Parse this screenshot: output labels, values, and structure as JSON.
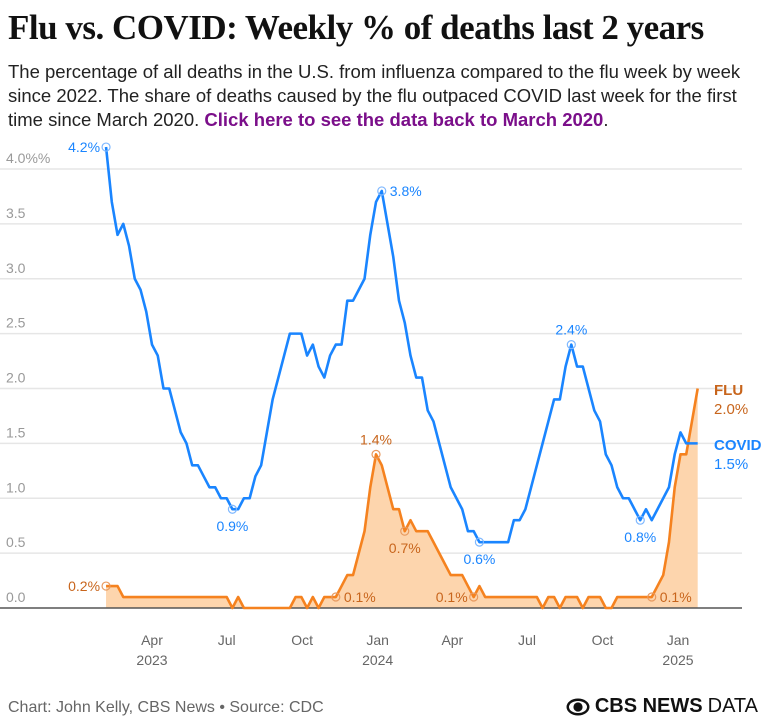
{
  "header": {
    "title": "Flu vs. COVID: Weekly % of deaths last 2 years",
    "subtitle": "The percentage of all deaths in the U.S. from influenza compared to the flu week by week since 2022. The share of deaths caused by the flu outpaced COVID last week for the first time since March 2020. ",
    "link": "Click here to see the data back to March 2020",
    "link_suffix": "."
  },
  "footer": {
    "credit": "Chart: John Kelly, CBS News • Source: CDC",
    "logo": "CBS NEWS",
    "logo_suffix": "DATA"
  },
  "colors": {
    "covid": "#1a85ff",
    "flu": "#f5821f",
    "flu_text": "#c8651c",
    "flu_fill": "#fdd5ad",
    "grid": "#e6e6e6"
  },
  "chart_data": {
    "type": "line",
    "title": "Flu vs. COVID: Weekly % of deaths last 2 years",
    "ylim": [
      0,
      4.2
    ],
    "grid": true,
    "y_ticks": [
      "0.0",
      "0.5",
      "1.0",
      "1.5",
      "2.0",
      "2.5",
      "3.0",
      "3.5",
      "4.0%%"
    ],
    "x_ticks": [
      {
        "label": "Apr",
        "year": "2023",
        "date": "2023-04-01"
      },
      {
        "label": "Jul",
        "year": "",
        "date": "2023-07-01"
      },
      {
        "label": "Oct",
        "year": "",
        "date": "2023-10-01"
      },
      {
        "label": "Jan",
        "year": "2024",
        "date": "2024-01-01"
      },
      {
        "label": "Apr",
        "year": "",
        "date": "2024-04-01"
      },
      {
        "label": "Jul",
        "year": "",
        "date": "2024-07-01"
      },
      {
        "label": "Oct",
        "year": "",
        "date": "2024-10-01"
      },
      {
        "label": "Jan",
        "year": "2025",
        "date": "2025-01-01"
      }
    ],
    "x": [
      "2023-02-04",
      "2023-02-11",
      "2023-02-18",
      "2023-02-25",
      "2023-03-04",
      "2023-03-11",
      "2023-03-18",
      "2023-03-25",
      "2023-04-01",
      "2023-04-08",
      "2023-04-15",
      "2023-04-22",
      "2023-04-29",
      "2023-05-06",
      "2023-05-13",
      "2023-05-20",
      "2023-05-27",
      "2023-06-03",
      "2023-06-10",
      "2023-06-17",
      "2023-06-24",
      "2023-07-01",
      "2023-07-08",
      "2023-07-15",
      "2023-07-22",
      "2023-07-29",
      "2023-08-05",
      "2023-08-12",
      "2023-08-19",
      "2023-08-26",
      "2023-09-02",
      "2023-09-09",
      "2023-09-16",
      "2023-09-23",
      "2023-09-30",
      "2023-10-07",
      "2023-10-14",
      "2023-10-21",
      "2023-10-28",
      "2023-11-04",
      "2023-11-11",
      "2023-11-18",
      "2023-11-25",
      "2023-12-02",
      "2023-12-09",
      "2023-12-16",
      "2023-12-23",
      "2023-12-30",
      "2024-01-06",
      "2024-01-13",
      "2024-01-20",
      "2024-01-27",
      "2024-02-03",
      "2024-02-10",
      "2024-02-17",
      "2024-02-24",
      "2024-03-02",
      "2024-03-09",
      "2024-03-16",
      "2024-03-23",
      "2024-03-30",
      "2024-04-06",
      "2024-04-13",
      "2024-04-20",
      "2024-04-27",
      "2024-05-04",
      "2024-05-11",
      "2024-05-18",
      "2024-05-25",
      "2024-06-01",
      "2024-06-08",
      "2024-06-15",
      "2024-06-22",
      "2024-06-29",
      "2024-07-06",
      "2024-07-13",
      "2024-07-20",
      "2024-07-27",
      "2024-08-03",
      "2024-08-10",
      "2024-08-17",
      "2024-08-24",
      "2024-08-31",
      "2024-09-07",
      "2024-09-14",
      "2024-09-21",
      "2024-09-28",
      "2024-10-05",
      "2024-10-12",
      "2024-10-19",
      "2024-10-26",
      "2024-11-02",
      "2024-11-09",
      "2024-11-16",
      "2024-11-23",
      "2024-11-30",
      "2024-12-07",
      "2024-12-14",
      "2024-12-21",
      "2024-12-28",
      "2025-01-04",
      "2025-01-11",
      "2025-01-18",
      "2025-01-25"
    ],
    "series": [
      {
        "name": "COVID",
        "end_label": "1.5%",
        "values": [
          4.2,
          3.7,
          3.4,
          3.5,
          3.3,
          3.0,
          2.9,
          2.7,
          2.4,
          2.3,
          2.0,
          2.0,
          1.8,
          1.6,
          1.5,
          1.3,
          1.3,
          1.2,
          1.1,
          1.1,
          1.0,
          1.0,
          0.9,
          0.9,
          1.0,
          1.0,
          1.2,
          1.3,
          1.6,
          1.9,
          2.1,
          2.3,
          2.5,
          2.5,
          2.5,
          2.3,
          2.4,
          2.2,
          2.1,
          2.3,
          2.4,
          2.4,
          2.8,
          2.8,
          2.9,
          3.0,
          3.4,
          3.7,
          3.8,
          3.5,
          3.2,
          2.8,
          2.6,
          2.3,
          2.1,
          2.1,
          1.8,
          1.7,
          1.5,
          1.3,
          1.1,
          1.0,
          0.9,
          0.7,
          0.7,
          0.6,
          0.6,
          0.6,
          0.6,
          0.6,
          0.6,
          0.8,
          0.8,
          0.9,
          1.1,
          1.3,
          1.5,
          1.7,
          1.9,
          1.9,
          2.2,
          2.4,
          2.2,
          2.2,
          2.0,
          1.8,
          1.7,
          1.4,
          1.3,
          1.1,
          1.0,
          1.0,
          0.9,
          0.8,
          0.9,
          0.8,
          0.9,
          1.0,
          1.1,
          1.4,
          1.6,
          1.5,
          1.5,
          1.5
        ]
      },
      {
        "name": "FLU",
        "end_label": "2.0%",
        "values": [
          0.2,
          0.2,
          0.2,
          0.1,
          0.1,
          0.1,
          0.1,
          0.1,
          0.1,
          0.1,
          0.1,
          0.1,
          0.1,
          0.1,
          0.1,
          0.1,
          0.1,
          0.1,
          0.1,
          0.1,
          0.1,
          0.1,
          0.0,
          0.1,
          0.0,
          0.0,
          0.0,
          0.0,
          0.0,
          0.0,
          0.0,
          0.0,
          0.0,
          0.1,
          0.1,
          0.0,
          0.1,
          0.0,
          0.1,
          0.1,
          0.1,
          0.2,
          0.3,
          0.3,
          0.5,
          0.7,
          1.1,
          1.4,
          1.3,
          1.1,
          0.9,
          0.9,
          0.7,
          0.8,
          0.7,
          0.7,
          0.7,
          0.6,
          0.5,
          0.4,
          0.3,
          0.3,
          0.3,
          0.2,
          0.1,
          0.2,
          0.1,
          0.1,
          0.1,
          0.1,
          0.1,
          0.1,
          0.1,
          0.1,
          0.1,
          0.1,
          0.0,
          0.1,
          0.1,
          0.0,
          0.1,
          0.1,
          0.1,
          0.0,
          0.1,
          0.1,
          0.1,
          0.0,
          0.0,
          0.1,
          0.1,
          0.1,
          0.1,
          0.1,
          0.1,
          0.1,
          0.2,
          0.3,
          0.6,
          1.1,
          1.4,
          1.4,
          1.7,
          2.0
        ]
      }
    ],
    "annotations": [
      {
        "series": "COVID",
        "index": 0,
        "label": "4.2%",
        "pos": "left"
      },
      {
        "series": "COVID",
        "index": 22,
        "label": "0.9%",
        "pos": "below"
      },
      {
        "series": "COVID",
        "index": 48,
        "label": "3.8%",
        "pos": "right"
      },
      {
        "series": "COVID",
        "index": 65,
        "label": "0.6%",
        "pos": "below"
      },
      {
        "series": "COVID",
        "index": 81,
        "label": "2.4%",
        "pos": "above"
      },
      {
        "series": "COVID",
        "index": 93,
        "label": "0.8%",
        "pos": "below"
      },
      {
        "series": "FLU",
        "index": 0,
        "label": "0.2%",
        "pos": "left"
      },
      {
        "series": "FLU",
        "index": 40,
        "label": "0.1%",
        "pos": "right"
      },
      {
        "series": "FLU",
        "index": 47,
        "label": "1.4%",
        "pos": "above"
      },
      {
        "series": "FLU",
        "index": 52,
        "label": "0.7%",
        "pos": "below"
      },
      {
        "series": "FLU",
        "index": 64,
        "label": "0.1%",
        "pos": "left"
      },
      {
        "series": "FLU",
        "index": 95,
        "label": "0.1%",
        "pos": "right"
      }
    ]
  }
}
